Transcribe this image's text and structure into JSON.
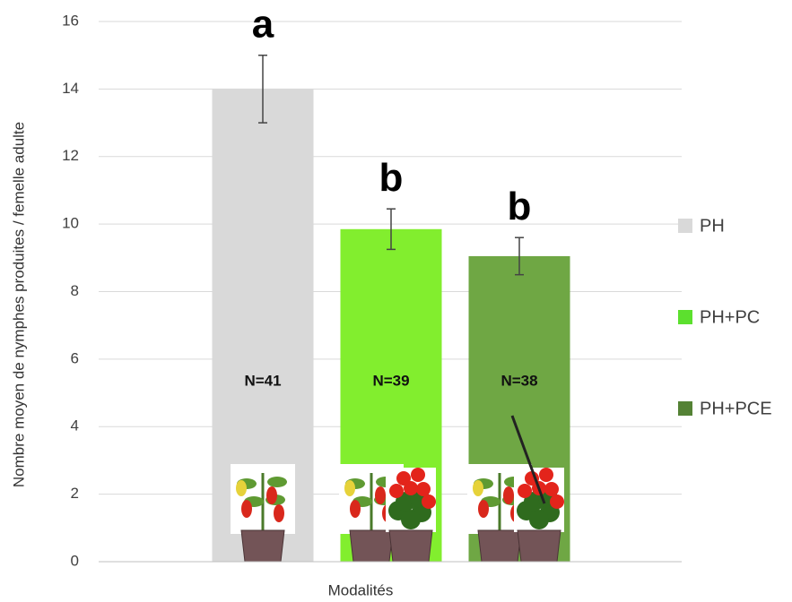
{
  "chart_data": {
    "type": "bar",
    "y_axis_label": "Nombre moyen de nymphes produites / femelle adulte",
    "x_axis_label": "Modalités",
    "categories": [
      "PH",
      "PH+PC",
      "PH+PCE"
    ],
    "values": [
      14,
      9.85,
      9.05
    ],
    "errors": [
      1.0,
      0.6,
      0.55
    ],
    "colors": [
      "#d9d9d9",
      "#82ee2e",
      "#6fa744"
    ],
    "legend_colors": [
      "#d9d9d9",
      "#5ce02e",
      "#548235"
    ],
    "letters": [
      "a",
      "b",
      "b"
    ],
    "n_labels": [
      "N=41",
      "N=39",
      "N=38"
    ],
    "ylim": [
      0,
      16
    ],
    "yticks": [
      0,
      2,
      4,
      6,
      8,
      10,
      12,
      14,
      16
    ],
    "grid": true,
    "legend": "right"
  }
}
